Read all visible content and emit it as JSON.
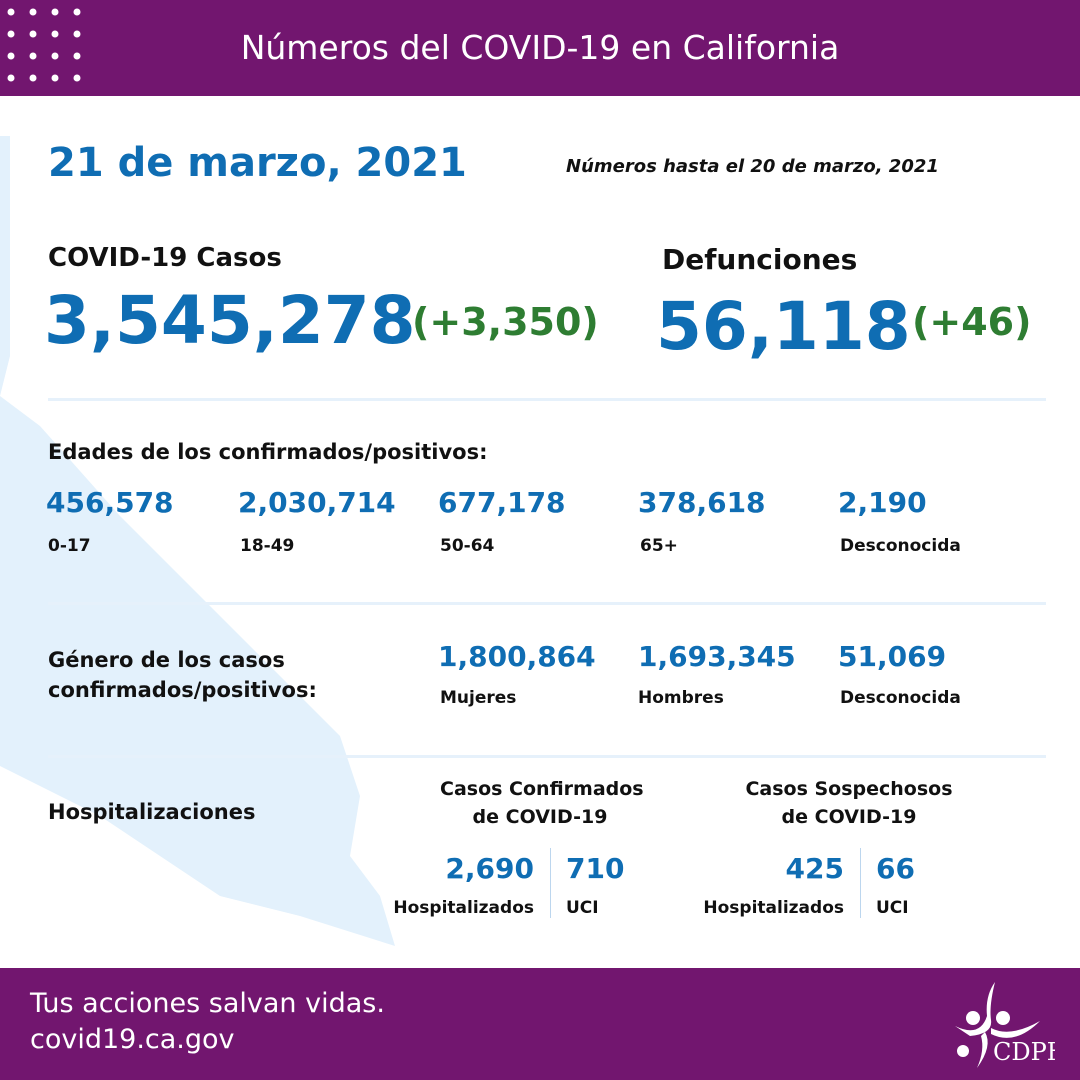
{
  "header": {
    "title": "Números del COVID-19 en California"
  },
  "date": "21 de marzo, 2021",
  "as_of": "Números hasta el 20 de marzo, 2021",
  "cases": {
    "label": "COVID-19 Casos",
    "value": "3,545,278",
    "delta": "(+3,350)"
  },
  "deaths": {
    "label": "Defunciones",
    "value": "56,118",
    "delta": "(+46)"
  },
  "ages": {
    "title": "Edades de los confirmados/positivos:",
    "items": [
      {
        "value": "456,578",
        "label": "0-17"
      },
      {
        "value": "2,030,714",
        "label": "18-49"
      },
      {
        "value": "677,178",
        "label": "50-64"
      },
      {
        "value": "378,618",
        "label": "65+"
      },
      {
        "value": "2,190",
        "label": "Desconocida"
      }
    ]
  },
  "gender": {
    "title_line1": "Género de los casos",
    "title_line2": "confirmados/positivos:",
    "items": [
      {
        "value": "1,800,864",
        "label": "Mujeres"
      },
      {
        "value": "1,693,345",
        "label": "Hombres"
      },
      {
        "value": "51,069",
        "label": "Desconocida"
      }
    ]
  },
  "hosp": {
    "title": "Hospitalizaciones",
    "confirmed": {
      "line1": "Casos Confirmados",
      "line2": "de COVID-19",
      "hosp_value": "2,690",
      "hosp_label": "Hospitalizados",
      "icu_value": "710",
      "icu_label": "UCI"
    },
    "suspected": {
      "line1": "Casos Sospechosos",
      "line2": "de COVID-19",
      "hosp_value": "425",
      "hosp_label": "Hospitalizados",
      "icu_value": "66",
      "icu_label": "UCI"
    }
  },
  "footer": {
    "line1": "Tus acciones salvan vidas.",
    "line2": "covid19.ca.gov",
    "logo_text": "CDPH"
  },
  "colors": {
    "purple": "#72166f",
    "blue": "#0f6db3",
    "green": "#2e7d32",
    "map": "#e3f1fc"
  }
}
